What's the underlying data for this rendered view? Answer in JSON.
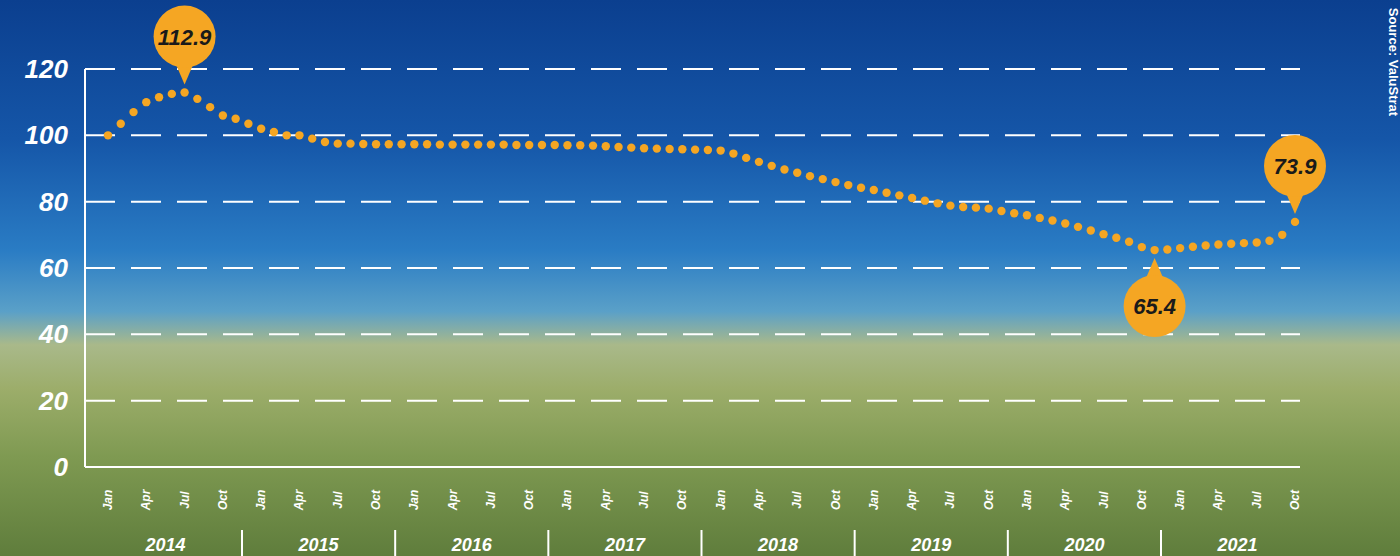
{
  "chart_data": {
    "type": "line",
    "categories": [
      "Jan",
      null,
      null,
      "Apr",
      null,
      null,
      "Jul",
      null,
      null,
      "Oct",
      null,
      null,
      "Jan",
      null,
      null,
      "Apr",
      null,
      null,
      "Jul",
      null,
      null,
      "Oct",
      null,
      null,
      "Jan",
      null,
      null,
      "Apr",
      null,
      null,
      "Jul",
      null,
      null,
      "Oct",
      null,
      null,
      "Jan",
      null,
      null,
      "Apr",
      null,
      null,
      "Jul",
      null,
      null,
      "Oct",
      null,
      null,
      "Jan",
      null,
      null,
      "Apr",
      null,
      null,
      "Jul",
      null,
      null,
      "Oct",
      null,
      null,
      "Jan",
      null,
      null,
      "Apr",
      null,
      null,
      "Jul",
      null,
      null,
      "Oct",
      null,
      null,
      "Jan",
      null,
      null,
      "Apr",
      null,
      null,
      "Jul",
      null,
      null,
      "Oct",
      null,
      null,
      "Jan",
      null,
      null,
      "Apr",
      null,
      null,
      "Jul",
      null,
      null,
      "Oct"
    ],
    "year_groups": [
      "2014",
      "2015",
      "2016",
      "2017",
      "2018",
      "2019",
      "2020",
      "2021"
    ],
    "values": [
      100,
      103.5,
      107,
      110,
      111.5,
      112.5,
      112.9,
      111,
      108.5,
      106,
      105,
      103.5,
      102,
      101,
      100,
      100,
      99,
      98,
      97.5,
      97.5,
      97.4,
      97.3,
      97.3,
      97.3,
      97.3,
      97.3,
      97.2,
      97.2,
      97.2,
      97.2,
      97.2,
      97.2,
      97.1,
      97.1,
      97.1,
      97.1,
      97,
      97,
      96.9,
      96.7,
      96.5,
      96.3,
      96.1,
      96,
      95.9,
      95.8,
      95.7,
      95.6,
      95.4,
      94.5,
      93.2,
      92,
      90.8,
      89.7,
      88.7,
      87.7,
      86.8,
      85.9,
      85,
      84.2,
      83.5,
      82.7,
      81.9,
      81.1,
      80.3,
      79.5,
      78.8,
      78.4,
      78.2,
      77.9,
      77.2,
      76.5,
      75.9,
      75.1,
      74.3,
      73.4,
      72.4,
      71.3,
      70.2,
      69.1,
      67.9,
      66.3,
      65.4,
      65.6,
      66,
      66.4,
      66.8,
      67.1,
      67.3,
      67.5,
      67.7,
      68.2,
      70,
      73.9
    ],
    "color": "#f5a623",
    "marker": "circle",
    "line_style": "dotted",
    "ylim": [
      0,
      120
    ],
    "yticks": [
      0,
      20,
      40,
      60,
      80,
      100,
      120
    ],
    "grid": true,
    "annotations": [
      {
        "text": "112.9",
        "index": 6,
        "position": "above"
      },
      {
        "text": "65.4",
        "index": 82,
        "position": "below"
      },
      {
        "text": "73.9",
        "index": 93,
        "position": "above"
      }
    ],
    "source": "Source: ValuStrat"
  }
}
